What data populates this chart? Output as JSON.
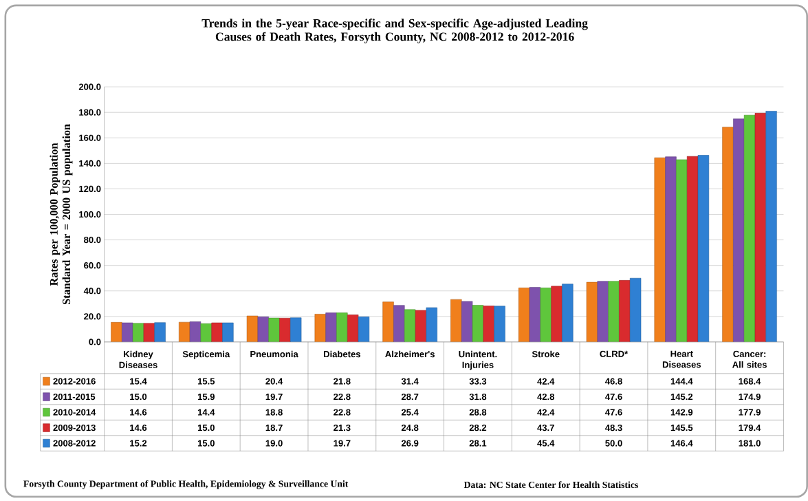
{
  "chart_data": {
    "type": "bar",
    "title": "Trends in the 5-year Race-specific and Sex-specific Age-adjusted Leading Causes of Death Rates, Forsyth County, NC 2008-2012 to 2012-2016",
    "ylabel": "Rates per 100,000 Population Standard Year = 2000 US population",
    "categories": [
      "Kidney Diseases",
      "Septicemia",
      "Pneumonia",
      "Diabetes",
      "Alzheimer's",
      "Unintent. Injuries",
      "Stroke",
      "CLRD*",
      "Heart Diseases",
      "Cancer: All sites"
    ],
    "series": [
      {
        "name": "2012-2016",
        "color": "#f07f1c",
        "values": [
          15.4,
          15.5,
          20.4,
          21.8,
          31.4,
          33.3,
          42.4,
          46.8,
          144.4,
          168.4
        ],
        "value_labels": [
          "15.4",
          "15.5",
          "20.4",
          "21.8",
          "31.4",
          "33.3",
          "42.4",
          "46.8",
          "144.4",
          "168.4"
        ]
      },
      {
        "name": "2011-2015",
        "color": "#7e52ad",
        "values": [
          15.0,
          15.9,
          19.7,
          22.8,
          28.7,
          31.8,
          42.8,
          47.6,
          145.2,
          174.9
        ],
        "value_labels": [
          "15.0",
          "15.9",
          "19.7",
          "22.8",
          "28.7",
          "31.8",
          "42.8",
          "47.6",
          "145.2",
          "174.9"
        ]
      },
      {
        "name": "2010-2014",
        "color": "#5fc63c",
        "values": [
          14.6,
          14.4,
          18.8,
          22.8,
          25.4,
          28.8,
          42.4,
          47.6,
          142.9,
          177.9
        ],
        "value_labels": [
          "14.6",
          "14.4",
          "18.8",
          "22.8",
          "25.4",
          "28.8",
          "42.4",
          "47.6",
          "142.9",
          "177.9"
        ]
      },
      {
        "name": "2009-2013",
        "color": "#d92b2e",
        "values": [
          14.6,
          15.0,
          18.7,
          21.3,
          24.8,
          28.2,
          43.7,
          48.3,
          145.5,
          179.4
        ],
        "value_labels": [
          "14.6",
          "15.0",
          "18.7",
          "21.3",
          "24.8",
          "28.2",
          "43.7",
          "48.3",
          "145.5",
          "179.4"
        ]
      },
      {
        "name": "2008-2012",
        "color": "#2f80d3",
        "values": [
          15.2,
          15.0,
          19.0,
          19.7,
          26.9,
          28.1,
          45.4,
          50.0,
          146.4,
          181.0
        ],
        "value_labels": [
          "15.2",
          "15.0",
          "19.0",
          "19.7",
          "26.9",
          "28.1",
          "45.4",
          "50.0",
          "146.4",
          "181.0"
        ]
      }
    ],
    "ylim": [
      0,
      200
    ],
    "yticks": [
      {
        "value": 0,
        "label": "0.0"
      },
      {
        "value": 20,
        "label": "20.0"
      },
      {
        "value": 40,
        "label": "40.0"
      },
      {
        "value": 60,
        "label": "60.0"
      },
      {
        "value": 80,
        "label": "80.0"
      },
      {
        "value": 100,
        "label": "100.0"
      },
      {
        "value": 120,
        "label": "120.0"
      },
      {
        "value": 140,
        "label": "140.0"
      },
      {
        "value": 160,
        "label": "160.0"
      },
      {
        "value": 180,
        "label": "180.0"
      },
      {
        "value": 200,
        "label": "200.0"
      }
    ],
    "grid": "y",
    "legend": "bottom",
    "annotations": [
      "Forsyth County Department of Public Health, Epidemiology & Surveillance Unit",
      "Data: NC State Center for Health Statistics"
    ]
  }
}
